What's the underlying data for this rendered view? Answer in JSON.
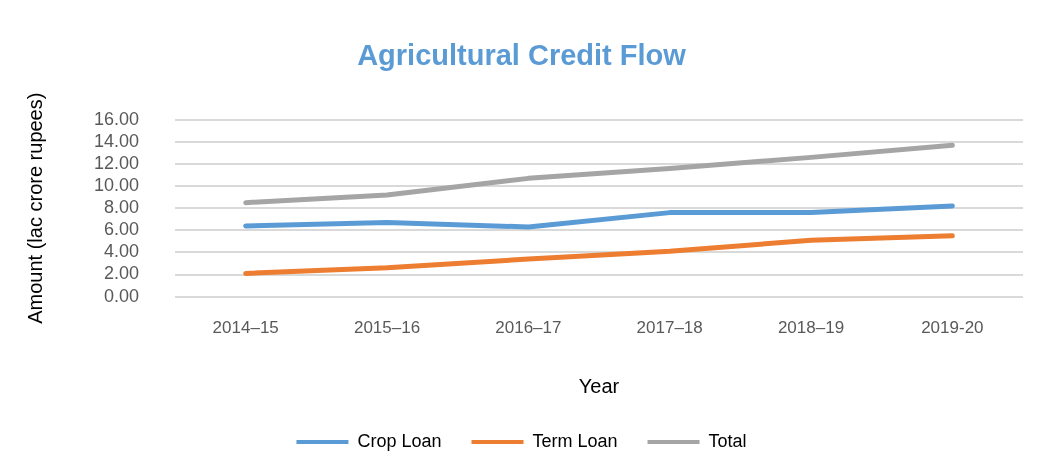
{
  "chart_data": {
    "type": "line",
    "title": "Agricultural Credit Flow",
    "xlabel": "Year",
    "ylabel": "Amount (lac crore rupees)",
    "categories": [
      "2014–15",
      "2015–16",
      "2016–17",
      "2017–18",
      "2018–19",
      "2019-20"
    ],
    "series": [
      {
        "name": "Crop Loan",
        "color": "#5b9bd5",
        "values": [
          6.4,
          6.7,
          6.3,
          7.6,
          7.6,
          8.2
        ]
      },
      {
        "name": "Term Loan",
        "color": "#ed7d31",
        "values": [
          2.1,
          2.6,
          3.4,
          4.1,
          5.1,
          5.5
        ]
      },
      {
        "name": "Total",
        "color": "#a5a5a5",
        "values": [
          8.5,
          9.2,
          10.7,
          11.6,
          12.6,
          13.7
        ]
      }
    ],
    "ylim": [
      0,
      16
    ],
    "yticks": [
      {
        "value": 0,
        "label": "0.00"
      },
      {
        "value": 2,
        "label": "2.00"
      },
      {
        "value": 4,
        "label": "4.00"
      },
      {
        "value": 6,
        "label": "6.00"
      },
      {
        "value": 8,
        "label": "8.00"
      },
      {
        "value": 10,
        "label": "10.00"
      },
      {
        "value": 12,
        "label": "12.00"
      },
      {
        "value": 14,
        "label": "14.00"
      },
      {
        "value": 16,
        "label": "16.00"
      }
    ],
    "grid": "y",
    "legend": "bottom",
    "marker": "none",
    "line_style": "solid"
  }
}
